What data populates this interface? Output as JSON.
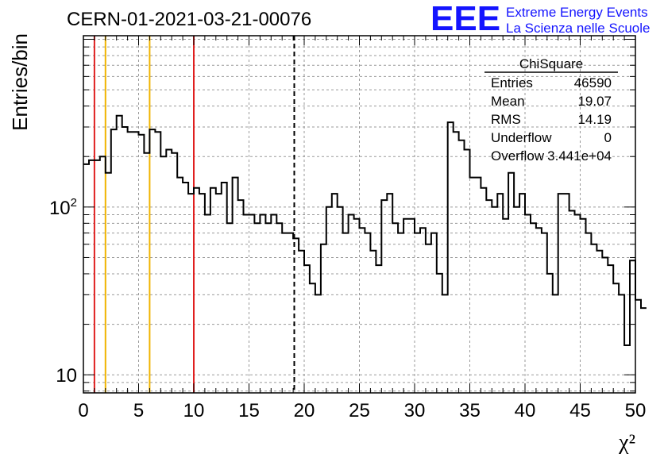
{
  "header": {
    "run_title": "CERN-01-2021-03-21-00076",
    "logo_text": "EEE",
    "logo_line1": "Extreme Energy Events",
    "logo_line2": "La Scienza nelle Scuole"
  },
  "colors": {
    "logo": "#1414ff",
    "red_lines": "#e02020",
    "orange_lines": "#f0b400",
    "histogram": "#000000",
    "grid": "#9a9a9a"
  },
  "stats": {
    "title": "ChiSquare",
    "rows": [
      {
        "label": "Entries",
        "value": "46590"
      },
      {
        "label": "Mean",
        "value": "19.07"
      },
      {
        "label": "RMS",
        "value": "14.19"
      },
      {
        "label": "Underflow",
        "value": "0"
      },
      {
        "label": "Overflow",
        "value": "3.441e+04"
      }
    ]
  },
  "chart_data": {
    "type": "histogram",
    "title": "CERN-01-2021-03-21-00076",
    "xlabel": "χ²",
    "ylabel": "Entries/bin",
    "xlim": [
      0,
      50
    ],
    "ylim": [
      7.8,
      1050
    ],
    "yscale": "log",
    "grid": true,
    "bin_width": 0.5,
    "x_ticks": [
      "0",
      "5",
      "10",
      "15",
      "20",
      "25",
      "30",
      "35",
      "40",
      "45",
      "50"
    ],
    "y_tick_labels": [
      {
        "value": 10,
        "label": "10"
      },
      {
        "value": 100,
        "label": "10",
        "sup": "2"
      }
    ],
    "values": [
      180,
      190,
      190,
      200,
      160,
      290,
      350,
      300,
      280,
      280,
      270,
      210,
      290,
      280,
      200,
      220,
      210,
      150,
      140,
      120,
      130,
      120,
      90,
      130,
      120,
      140,
      80,
      150,
      110,
      90,
      90,
      80,
      90,
      80,
      90,
      80,
      70,
      70,
      65,
      55,
      45,
      35,
      30,
      60,
      100,
      120,
      100,
      70,
      90,
      85,
      75,
      70,
      55,
      45,
      110,
      120,
      80,
      70,
      85,
      85,
      70,
      75,
      60,
      70,
      40,
      30,
      320,
      280,
      250,
      220,
      150,
      150,
      130,
      110,
      100,
      120,
      85,
      160,
      100,
      120,
      90,
      80,
      75,
      70,
      40,
      30,
      120,
      120,
      95,
      90,
      85,
      70,
      60,
      55,
      50,
      45,
      35,
      30,
      15,
      48,
      28,
      25
    ],
    "vertical_lines": [
      {
        "x": 1,
        "color": "red",
        "style": "solid"
      },
      {
        "x": 2,
        "color": "orange",
        "style": "solid"
      },
      {
        "x": 6,
        "color": "orange",
        "style": "solid"
      },
      {
        "x": 10,
        "color": "red",
        "style": "solid"
      },
      {
        "x": 19.1,
        "color": "black",
        "style": "dashed"
      }
    ]
  }
}
